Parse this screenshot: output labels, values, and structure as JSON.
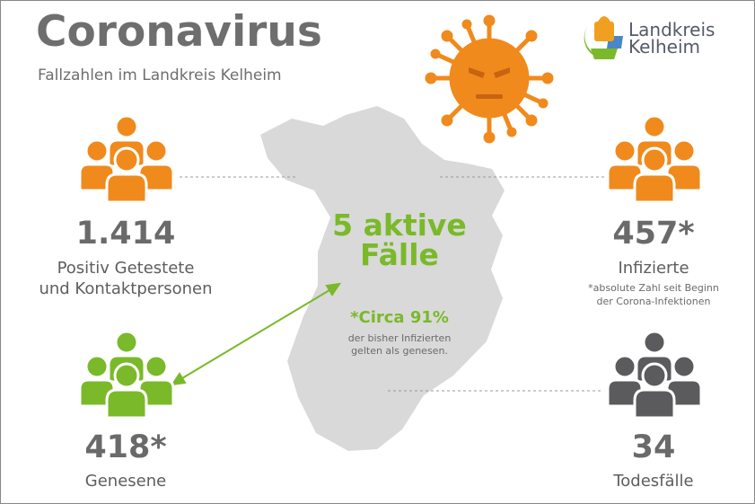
{
  "header": {
    "title": "Coronavirus",
    "subtitle": "Fallzahlen im Landkreis Kelheim"
  },
  "logo": {
    "line1": "Landkreis",
    "line2": "Kelheim"
  },
  "colors": {
    "orange": "#f08a1c",
    "green": "#7ab929",
    "dark": "#5b5b5d",
    "map": "#d9d9d9",
    "text": "#6e6e6e"
  },
  "center": {
    "active_line1": "5 aktive",
    "active_line2": "Fälle",
    "circa": "*Circa 91%",
    "circa_sub1": "der bisher Infizierten",
    "circa_sub2": "gelten als genesen."
  },
  "stats": {
    "positive": {
      "value": "1.414",
      "label1": "Positiv Getestete",
      "label2": "und Kontaktpersonen",
      "icon": "people-group-icon"
    },
    "infected": {
      "value": "457*",
      "label": "Infizierte",
      "note1": "*absolute Zahl seit Beginn",
      "note2": "der Corona-Infektionen",
      "icon": "people-group-icon"
    },
    "recovered": {
      "value": "418*",
      "label": "Genesene",
      "icon": "people-group-icon"
    },
    "deaths": {
      "value": "34",
      "label": "Todesfälle",
      "icon": "people-group-icon"
    }
  }
}
